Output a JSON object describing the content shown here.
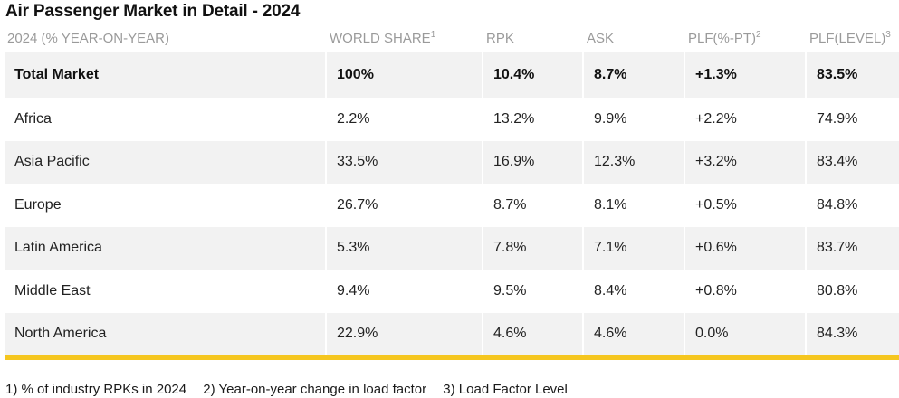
{
  "title": "Air Passenger Market in Detail - 2024",
  "headers": [
    {
      "label": "2024 (% YEAR-ON-YEAR)",
      "sup": ""
    },
    {
      "label": "WORLD SHARE",
      "sup": "1"
    },
    {
      "label": "RPK",
      "sup": ""
    },
    {
      "label": "ASK",
      "sup": ""
    },
    {
      "label": "PLF(%-PT)",
      "sup": "2"
    },
    {
      "label": "PLF(LEVEL)",
      "sup": "3"
    }
  ],
  "rows": [
    [
      "Total Market",
      "100%",
      "10.4%",
      "8.7%",
      "+1.3%",
      "83.5%"
    ],
    [
      "Africa",
      "2.2%",
      "13.2%",
      "9.9%",
      "+2.2%",
      "74.9%"
    ],
    [
      "Asia Pacific",
      "33.5%",
      "16.9%",
      "12.3%",
      "+3.2%",
      "83.4%"
    ],
    [
      "Europe",
      "26.7%",
      "8.7%",
      "8.1%",
      "+0.5%",
      "84.8%"
    ],
    [
      "Latin America",
      "5.3%",
      "7.8%",
      "7.1%",
      "+0.6%",
      "83.7%"
    ],
    [
      "Middle East",
      "9.4%",
      "9.5%",
      "8.4%",
      "+0.8%",
      "80.8%"
    ],
    [
      "North America",
      "22.9%",
      "4.6%",
      "4.6%",
      "0.0%",
      "84.3%"
    ]
  ],
  "footnotes": [
    "1) % of industry RPKs in 2024",
    "2) Year-on-year change in load factor",
    "3) Load Factor Level"
  ],
  "colors": {
    "accent": "#f5c61f",
    "shade": "#f2f2f2",
    "header_text": "#9a9a9a"
  }
}
